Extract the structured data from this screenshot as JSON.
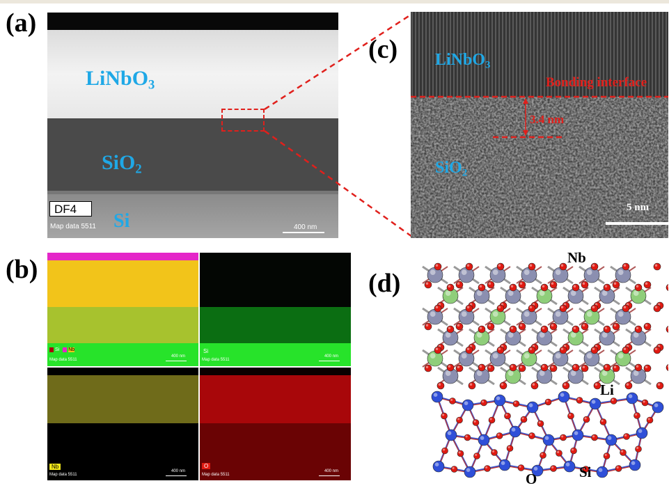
{
  "panels": {
    "a": {
      "letter": "(a)",
      "layer_top": "LiNbO",
      "layer_top_sub": "3",
      "layer_mid": "SiO",
      "layer_mid_sub": "2",
      "layer_bottom": "Si",
      "detector": "DF4",
      "map_data": "Map data 5511",
      "scale": "400 nm"
    },
    "b": {
      "letter": "(b)",
      "maps": [
        {
          "label": "Si",
          "legend": [
            "Si",
            "Nb"
          ],
          "map_data": "Map data 5511",
          "scale": "400 nm"
        },
        {
          "label": "Si",
          "map_data": "Map data 5511",
          "scale": "400 nm"
        },
        {
          "label": "Nb",
          "map_data": "Map data 5511",
          "scale": "400 nm"
        },
        {
          "label": "O",
          "map_data": "Map data 5511",
          "scale": "400 nm"
        }
      ]
    },
    "c": {
      "letter": "(c)",
      "layer_top": "LiNbO",
      "layer_top_sub": "3",
      "interface": "Bonding interface",
      "thickness": "3.4 nm",
      "layer_bottom": "SiO",
      "layer_bottom_sub": "2",
      "scale": "5 nm"
    },
    "d": {
      "letter": "(d)",
      "atom_nb": "Nb",
      "atom_li": "Li",
      "atom_o": "O",
      "atom_si": "Si"
    }
  },
  "colors": {
    "label_blue": "#1fa8e6",
    "interface_red": "#e0201c",
    "nb_atom": "#8b8fb0",
    "li_atom": "#8fce7a",
    "o_atom": "#e01a12",
    "si_atom": "#2f4fd8",
    "map_magenta": "#e426c8",
    "map_yellow": "#f2c41a",
    "map_green": "#27e32a",
    "map_olive": "#a7c22e",
    "map_dark_green": "#0b6e12",
    "map_nb": "#6f6b1a",
    "map_o": "#a8070a"
  }
}
